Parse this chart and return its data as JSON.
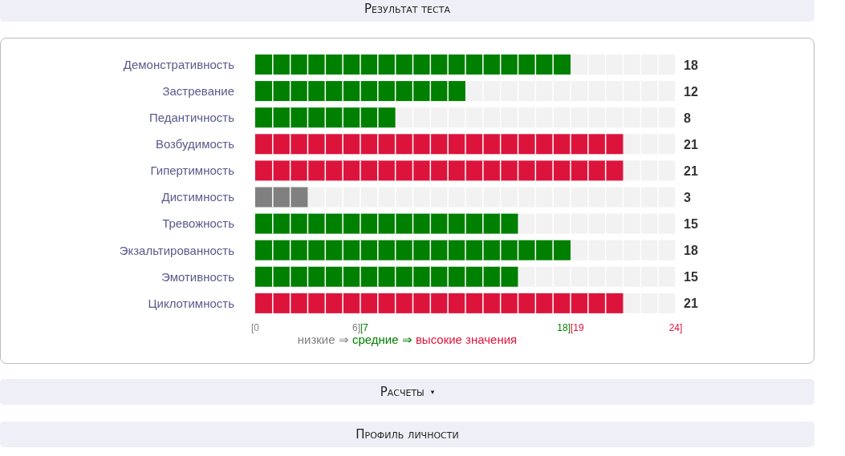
{
  "chart_data": {
    "type": "bar",
    "orientation": "horizontal",
    "stacked": true,
    "title": "Результат теста",
    "categories": [
      "Демонстративность",
      "Застревание",
      "Педантичность",
      "Возбудимость",
      "Гипертимность",
      "Дистимность",
      "Тревожность",
      "Экзальтированность",
      "Эмотивность",
      "Циклотимность"
    ],
    "series": [
      {
        "name": "низкие ⇒",
        "color": "#808080",
        "values": [
          null,
          null,
          null,
          null,
          null,
          3,
          null,
          null,
          null,
          null
        ]
      },
      {
        "name": "средние ⇒",
        "color": "#008000",
        "values": [
          18,
          12,
          8,
          null,
          null,
          null,
          15,
          18,
          15,
          null
        ]
      },
      {
        "name": "высокие значения",
        "color": "#dc143c",
        "values": [
          null,
          null,
          null,
          21,
          21,
          null,
          null,
          null,
          null,
          21
        ]
      }
    ],
    "xlim": [
      0,
      24
    ],
    "xticks": [
      {
        "value": 0,
        "label": "[0"
      },
      {
        "value": 6,
        "label": "6][7"
      },
      {
        "value": 18,
        "label": "18][19"
      },
      {
        "value": 24,
        "label": "24]"
      }
    ],
    "legend": "bottom",
    "grid": false,
    "annotations": [
      "18",
      "12",
      "8",
      "21",
      "21",
      "3",
      "15",
      "18",
      "15",
      "21",
      "Расчеты ▾",
      "Профиль личности"
    ]
  }
}
